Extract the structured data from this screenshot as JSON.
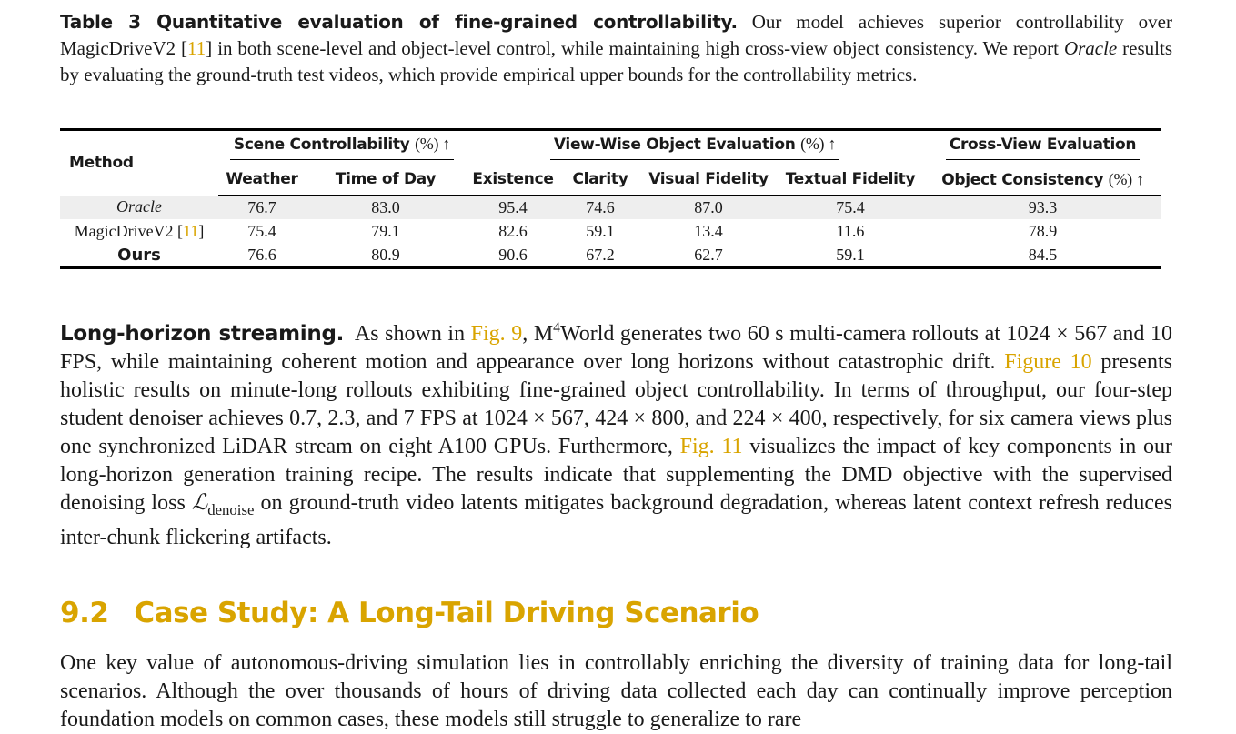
{
  "caption": {
    "label": "Table 3  Quantitative evaluation of fine-grained controllability.",
    "part1": "Our model achieves superior controllability over MagicDriveV2 [",
    "ref": "11",
    "part2": "] in both scene-level and object-level control, while maintaining high cross-view object consistency. We report ",
    "oracle": "Oracle",
    "part3": " results by evaluating the ground-truth test videos, which provide empirical upper bounds for the controllability metrics."
  },
  "table": {
    "method_header": "Method",
    "group_headers": [
      {
        "label": "Scene Controllability",
        "unit": "(%) ↑"
      },
      {
        "label": "View-Wise Object Evaluation",
        "unit": "(%) ↑"
      },
      {
        "label": "Cross-View Evaluation",
        "unit": ""
      }
    ],
    "sub_headers": [
      "Weather",
      "Time of Day",
      "Existence",
      "Clarity",
      "Visual Fidelity",
      "Textual Fidelity",
      "Object Consistency"
    ],
    "last_sub_unit": "(%) ↑",
    "rows": [
      {
        "method": "Oracle",
        "values": [
          "76.7",
          "83.0",
          "95.4",
          "74.6",
          "87.0",
          "75.4",
          "93.3"
        ]
      },
      {
        "method": "MagicDriveV2 [",
        "ref": "11",
        "method_end": "]",
        "values": [
          "75.4",
          "79.1",
          "82.6",
          "59.1",
          "13.4",
          "11.6",
          "78.9"
        ]
      },
      {
        "method": "Ours",
        "values": [
          "76.6",
          "80.9",
          "90.6",
          "67.2",
          "62.7",
          "59.1",
          "84.5"
        ]
      }
    ]
  },
  "para1": {
    "heading": "Long-horizon streaming.",
    "t1": "As shown in ",
    "fig9": "Fig. 9",
    "t2": ", M",
    "sup": "4",
    "t3": "World generates two 60 s multi-camera rollouts at 1024 × 567 and 10 FPS, while maintaining coherent motion and appearance over long horizons without catastrophic drift. ",
    "fig10": "Figure 10",
    "t4": " presents holistic results on minute-long rollouts exhibiting fine-grained object controllability. In terms of throughput, our four-step student denoiser achieves 0.7, 2.3, and 7 FPS at 1024 × 567, 424 × 800, and 224 × 400, respectively, for six camera views plus one synchronized LiDAR stream on eight A100 GPUs. Furthermore, ",
    "fig11": "Fig. 11",
    "t5": " visualizes the impact of key components in our long-horizon generation training recipe. The results indicate that supplementing the DMD objective with the supervised denoising loss ",
    "loss": "ℒ",
    "loss_sub": "denoise",
    "t6": " on ground-truth video latents mitigates background degradation, whereas latent context refresh reduces inter-chunk flickering artifacts."
  },
  "section": {
    "number": "9.2",
    "title": "Case Study: A Long-Tail Driving Scenario"
  },
  "para2": {
    "text": "One key value of autonomous-driving simulation lies in controllably enriching the diversity of training data for long-tail scenarios. Although the over thousands of hours of driving data collected each day can continually improve perception foundation models on common cases, these models still struggle to generalize to rare"
  }
}
